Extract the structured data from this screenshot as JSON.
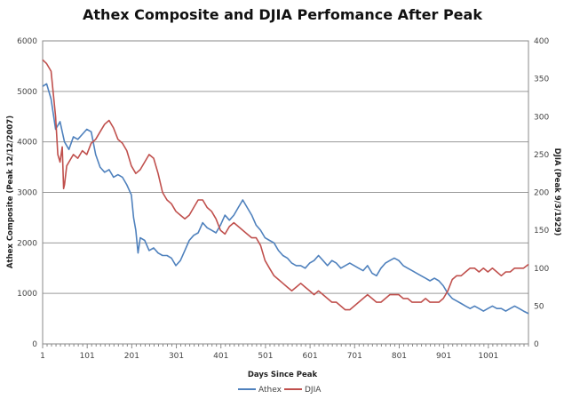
{
  "chart_data": {
    "type": "line",
    "title": "Athex Composite and DJIA Perfomance After Peak",
    "xlabel": "Days Since Peak",
    "ylabel_left": "Athex Composite (Peak 12/12/2007)",
    "ylabel_right": "DJIA (Peak 9/3/1929)",
    "xlim": [
      1,
      1091
    ],
    "ylim_left": [
      0,
      6000
    ],
    "ylim_right": [
      0,
      400
    ],
    "x_ticks": [
      1,
      101,
      201,
      301,
      401,
      501,
      601,
      701,
      801,
      901,
      1001
    ],
    "y_ticks_left": [
      0,
      1000,
      2000,
      3000,
      4000,
      5000,
      6000
    ],
    "y_ticks_right": [
      0,
      50,
      100,
      150,
      200,
      250,
      300,
      350,
      400
    ],
    "grid": true,
    "legend_position": "bottom",
    "series": [
      {
        "name": "Athex",
        "axis": "left",
        "color": "#4f81bd",
        "x": [
          1,
          10,
          20,
          30,
          40,
          50,
          60,
          70,
          80,
          90,
          100,
          110,
          120,
          130,
          140,
          150,
          160,
          170,
          180,
          190,
          200,
          205,
          210,
          215,
          220,
          230,
          240,
          250,
          260,
          270,
          280,
          290,
          300,
          310,
          320,
          330,
          340,
          350,
          360,
          370,
          380,
          390,
          400,
          410,
          420,
          430,
          440,
          450,
          460,
          470,
          480,
          490,
          500,
          510,
          520,
          530,
          540,
          550,
          560,
          570,
          580,
          590,
          600,
          610,
          620,
          630,
          640,
          650,
          660,
          670,
          680,
          690,
          700,
          710,
          720,
          730,
          740,
          750,
          760,
          770,
          780,
          790,
          800,
          810,
          820,
          830,
          840,
          850,
          860,
          870,
          880,
          890,
          900,
          910,
          920,
          930,
          940,
          950,
          960,
          970,
          980,
          990,
          1000,
          1010,
          1020,
          1030,
          1040,
          1050,
          1060,
          1070,
          1080,
          1091
        ],
        "values": [
          5100,
          5150,
          4850,
          4250,
          4400,
          4000,
          3850,
          4100,
          4050,
          4150,
          4250,
          4200,
          3750,
          3500,
          3400,
          3450,
          3300,
          3350,
          3300,
          3150,
          2950,
          2500,
          2250,
          1800,
          2100,
          2050,
          1850,
          1900,
          1800,
          1750,
          1750,
          1700,
          1550,
          1650,
          1850,
          2050,
          2150,
          2200,
          2400,
          2300,
          2250,
          2200,
          2350,
          2550,
          2450,
          2550,
          2700,
          2850,
          2700,
          2550,
          2350,
          2250,
          2100,
          2050,
          2000,
          1850,
          1750,
          1700,
          1600,
          1550,
          1550,
          1500,
          1600,
          1650,
          1750,
          1650,
          1550,
          1650,
          1600,
          1500,
          1550,
          1600,
          1550,
          1500,
          1450,
          1550,
          1400,
          1350,
          1500,
          1600,
          1650,
          1700,
          1650,
          1550,
          1500,
          1450,
          1400,
          1350,
          1300,
          1250,
          1300,
          1250,
          1150,
          1000,
          900,
          850,
          800,
          750,
          700,
          750,
          700,
          650,
          700,
          750,
          700,
          700,
          650,
          700,
          750,
          700,
          650,
          600
        ]
      },
      {
        "name": "DJIA",
        "axis": "right",
        "color": "#c0504d",
        "x": [
          1,
          10,
          20,
          30,
          35,
          40,
          45,
          48,
          50,
          55,
          60,
          70,
          80,
          90,
          100,
          110,
          120,
          130,
          140,
          150,
          160,
          170,
          180,
          190,
          200,
          210,
          220,
          230,
          240,
          250,
          260,
          270,
          280,
          290,
          300,
          310,
          320,
          330,
          340,
          350,
          360,
          370,
          380,
          390,
          400,
          410,
          420,
          430,
          440,
          450,
          460,
          470,
          480,
          490,
          500,
          510,
          520,
          530,
          540,
          550,
          560,
          570,
          580,
          590,
          600,
          610,
          620,
          630,
          640,
          650,
          660,
          670,
          680,
          690,
          700,
          710,
          720,
          730,
          740,
          750,
          760,
          770,
          780,
          790,
          800,
          810,
          820,
          830,
          840,
          850,
          860,
          870,
          880,
          890,
          900,
          910,
          920,
          930,
          940,
          950,
          960,
          970,
          980,
          990,
          1000,
          1010,
          1020,
          1030,
          1040,
          1050,
          1060,
          1070,
          1080,
          1091
        ],
        "values": [
          375,
          370,
          360,
          300,
          250,
          240,
          260,
          205,
          210,
          235,
          240,
          250,
          245,
          255,
          250,
          265,
          270,
          280,
          290,
          295,
          285,
          270,
          265,
          255,
          235,
          225,
          230,
          240,
          250,
          245,
          225,
          200,
          190,
          185,
          175,
          170,
          165,
          170,
          180,
          190,
          190,
          180,
          175,
          165,
          150,
          145,
          155,
          160,
          155,
          150,
          145,
          140,
          140,
          130,
          110,
          100,
          90,
          85,
          80,
          75,
          70,
          75,
          80,
          75,
          70,
          65,
          70,
          65,
          60,
          55,
          55,
          50,
          45,
          45,
          50,
          55,
          60,
          65,
          60,
          55,
          55,
          60,
          65,
          65,
          65,
          60,
          60,
          55,
          55,
          55,
          60,
          55,
          55,
          55,
          60,
          70,
          85,
          90,
          90,
          95,
          100,
          100,
          95,
          100,
          95,
          100,
          95,
          90,
          95,
          95,
          100,
          100,
          100,
          105
        ]
      }
    ]
  }
}
